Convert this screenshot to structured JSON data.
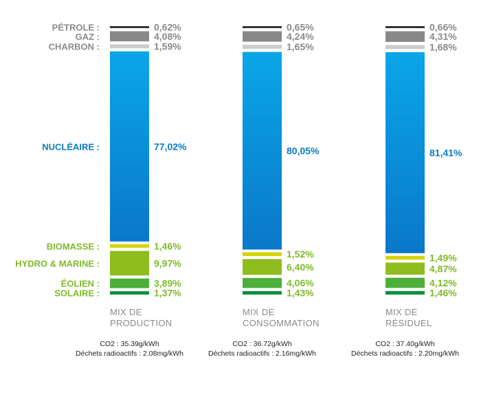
{
  "colors": {
    "fossil_text": "#8a8a8a",
    "nuclear_text": "#0a7cc4",
    "renewable_text": "#7fba2a",
    "footnote_text": "#222222"
  },
  "chart_data": {
    "type": "bar",
    "stacked": true,
    "orientation": "vertical",
    "categories": [
      {
        "key": "petrole",
        "label": "PÉTROLE :",
        "group": "fossil",
        "color": "#333333"
      },
      {
        "key": "gaz",
        "label": "GAZ :",
        "group": "fossil",
        "color": "#888888"
      },
      {
        "key": "charbon",
        "label": "CHARBON :",
        "group": "fossil",
        "color": "#cccccc"
      },
      {
        "key": "nucleaire",
        "label": "NUCLÉAIRE :",
        "group": "nuclear",
        "color": "#0a8ad6"
      },
      {
        "key": "biomasse",
        "label": "BIOMASSE :",
        "group": "renewable",
        "color": "#d4d400"
      },
      {
        "key": "hydro",
        "label": "HYDRO & MARINE :",
        "group": "renewable",
        "color": "#8fbc1e"
      },
      {
        "key": "eolien",
        "label": "ÉOLIEN :",
        "group": "renewable",
        "color": "#4caf3a"
      },
      {
        "key": "solaire",
        "label": "SOLAIRE :",
        "group": "renewable",
        "color": "#0a9040"
      }
    ],
    "series": [
      {
        "title_lines": [
          "MIX DE",
          "PRODUCTION"
        ],
        "values": [
          0.62,
          4.08,
          1.59,
          77.02,
          1.46,
          9.97,
          3.89,
          1.37
        ],
        "labels": [
          "0,62%",
          "4,08%",
          "1,59%",
          "77,02%",
          "1,46%",
          "9,97%",
          "3,89%",
          "1,37%"
        ],
        "footnote": [
          "CO2 : 35.39g/kWh",
          "Déchets radioactifs : 2.08mg/kWh"
        ]
      },
      {
        "title_lines": [
          "MIX DE",
          "CONSOMMATION"
        ],
        "values": [
          0.65,
          4.24,
          1.65,
          80.05,
          1.52,
          6.4,
          4.06,
          1.43
        ],
        "labels": [
          "0,65%",
          "4,24%",
          "1,65%",
          "80,05%",
          "1,52%",
          "6,40%",
          "4,06%",
          "1,43%"
        ],
        "footnote": [
          "CO2 : 36.72g/kWh",
          "Déchets radioactifs : 2.16mg/kWh"
        ]
      },
      {
        "title_lines": [
          "MIX DE",
          "RÉSIDUEL"
        ],
        "values": [
          0.66,
          4.31,
          1.68,
          81.41,
          1.49,
          4.87,
          4.12,
          1.46
        ],
        "labels": [
          "0,66%",
          "4,31%",
          "1,68%",
          "81,41%",
          "1,49%",
          "4,87%",
          "4,12%",
          "1,46%"
        ],
        "footnote": [
          "CO2 : 37.40g/kWh",
          "Déchets radioactifs : 2.20mg/kWh"
        ]
      }
    ]
  }
}
